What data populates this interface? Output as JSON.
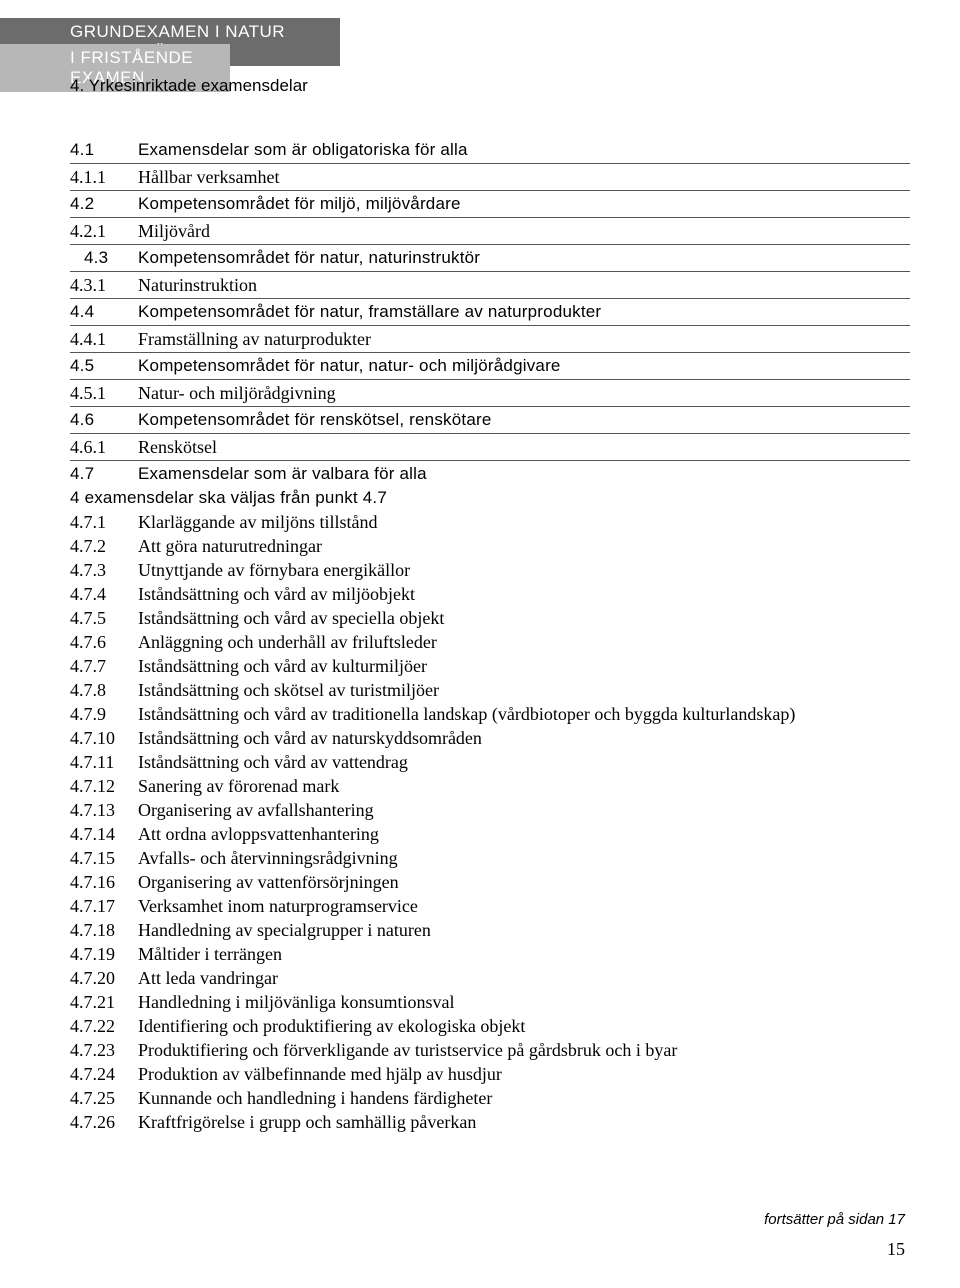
{
  "header": {
    "bar1": "GRUNDEXAMEN I NATUR OCH MILJÖ",
    "bar2": "I FRISTÅENDE EXAMEN",
    "sub": "4. Yrkesinriktade examensdelar"
  },
  "rows": [
    {
      "style": "narrow",
      "ruled": true,
      "num": "4.1",
      "txt": "Examensdelar som är obligatoriska för alla"
    },
    {
      "style": "serif",
      "ruled": true,
      "num": "4.1.1",
      "txt": "Hållbar verksamhet"
    },
    {
      "style": "narrow",
      "ruled": true,
      "num": "4.2",
      "txt": "Kompetensområdet för miljö, miljövårdare"
    },
    {
      "style": "serif",
      "ruled": true,
      "num": "4.2.1",
      "txt": "Miljövård"
    },
    {
      "style": "narrow",
      "ruled": true,
      "indent": true,
      "num": "4.3",
      "txt": "Kompetensområdet för natur, naturinstruktör"
    },
    {
      "style": "serif",
      "ruled": true,
      "num": "4.3.1",
      "txt": "Naturinstruktion"
    },
    {
      "style": "narrow",
      "ruled": true,
      "num": "4.4",
      "txt": "Kompetensområdet för natur, framställare av naturprodukter"
    },
    {
      "style": "serif",
      "ruled": true,
      "num": "4.4.1",
      "txt": "Framställning av naturprodukter"
    },
    {
      "style": "narrow",
      "ruled": true,
      "num": "4.5",
      "txt": "Kompetensområdet för natur, natur- och miljörådgivare"
    },
    {
      "style": "serif",
      "ruled": true,
      "num": "4.5.1",
      "txt": "Natur- och miljörådgivning"
    },
    {
      "style": "narrow",
      "ruled": true,
      "num": "4.6",
      "txt": "Kompetensområdet för renskötsel, renskötare"
    },
    {
      "style": "serif",
      "ruled": true,
      "num": "4.6.1",
      "txt": "Renskötsel"
    },
    {
      "style": "narrow",
      "ruled": false,
      "num": "4.7",
      "txt": "Examensdelar som är valbara för alla"
    }
  ],
  "note": "4 examensdelar ska väljas från punkt 4.7",
  "rows2": [
    {
      "num": "4.7.1",
      "txt": "Klarläggande av miljöns tillstånd"
    },
    {
      "num": "4.7.2",
      "txt": "Att göra naturutredningar"
    },
    {
      "num": "4.7.3",
      "txt": "Utnyttjande av förnybara energikällor"
    },
    {
      "num": "4.7.4",
      "txt": "Iståndsättning och vård av miljöobjekt"
    },
    {
      "num": "4.7.5",
      "txt": "Iståndsättning och vård av speciella objekt"
    },
    {
      "num": "4.7.6",
      "txt": "Anläggning och underhåll av friluftsleder"
    },
    {
      "num": "4.7.7",
      "txt": "Iståndsättning och vård av kulturmiljöer"
    },
    {
      "num": "4.7.8",
      "txt": "Iståndsättning och skötsel av turistmiljöer"
    },
    {
      "num": "4.7.9",
      "txt": "Iståndsättning och vård av traditionella landskap (vårdbiotoper och byggda kulturlandskap)"
    },
    {
      "num": "4.7.10",
      "txt": "Iståndsättning och vård av naturskyddsområden"
    },
    {
      "num": "4.7.11",
      "txt": "Iståndsättning och vård av vattendrag"
    },
    {
      "num": "4.7.12",
      "txt": "Sanering av förorenad mark"
    },
    {
      "num": "4.7.13",
      "txt": "Organisering av avfallshantering"
    },
    {
      "num": "4.7.14",
      "txt": "Att ordna avloppsvattenhantering"
    },
    {
      "num": "4.7.15",
      "txt": "Avfalls- och återvinningsrådgivning"
    },
    {
      "num": "4.7.16",
      "txt": "Organisering av vattenförsörjningen"
    },
    {
      "num": "4.7.17",
      "txt": "Verksamhet inom naturprogramservice"
    },
    {
      "num": "4.7.18",
      "txt": "Handledning av specialgrupper i naturen"
    },
    {
      "num": "4.7.19",
      "txt": "Måltider i terrängen"
    },
    {
      "num": "4.7.20",
      "txt": "Att leda vandringar"
    },
    {
      "num": "4.7.21",
      "txt": "Handledning i miljövänliga konsumtionsval"
    },
    {
      "num": "4.7.22",
      "txt": "Identifiering och produktifiering av ekologiska objekt"
    },
    {
      "num": "4.7.23",
      "txt": "Produktifiering och förverkligande av turistservice på gårdsbruk och i byar"
    },
    {
      "num": "4.7.24",
      "txt": "Produktion av välbefinnande med hjälp av husdjur"
    },
    {
      "num": "4.7.25",
      "txt": "Kunnande och handledning i handens färdigheter"
    },
    {
      "num": "4.7.26",
      "txt": "Kraftfrigörelse i grupp och samhällig påverkan"
    }
  ],
  "footer": {
    "note": "fortsätter på sidan 17",
    "page": "15"
  }
}
